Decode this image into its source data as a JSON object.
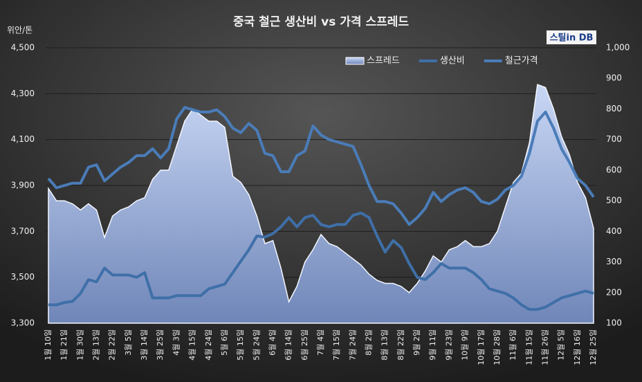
{
  "chart_data": {
    "type": "line",
    "title": "중국 철근 생산비 vs 가격 스프레드",
    "y_label": "위안/톤",
    "logo": "스틸in DB",
    "categories": [
      "1월 10일",
      null,
      "1월 21일",
      null,
      "1월 30일",
      null,
      "2월 13일",
      null,
      "2월 22일",
      null,
      "3월 5일",
      null,
      "3월 14일",
      null,
      "3월 25일",
      null,
      "4월 3일",
      null,
      "4월 15일",
      null,
      "4월 24일",
      null,
      "5월 6일",
      null,
      "5월 15일",
      null,
      "5월 24일",
      null,
      "6월 4일",
      null,
      "6월 14일",
      null,
      "6월 25일",
      null,
      "7월 4일",
      null,
      "7월 15일",
      null,
      "7월 24일",
      null,
      "8월 2일",
      null,
      "8월 13일",
      null,
      "8월 22일",
      null,
      "9월 2일",
      null,
      "9월 11일",
      null,
      "9월 23일",
      null,
      "10월 9일",
      null,
      "10월 17일",
      null,
      "10월 28일",
      null,
      "11월 6일",
      null,
      "11월 15일",
      null,
      "11월 26일",
      null,
      "12월 5일",
      null,
      "12월 16일",
      null,
      "12월 25일"
    ],
    "series": [
      {
        "name": "스프레드",
        "kind": "area",
        "axis": "y2",
        "color": "#b4c7ee",
        "values": [
          540,
          500,
          500,
          490,
          470,
          490,
          470,
          380,
          450,
          470,
          480,
          500,
          510,
          570,
          600,
          600,
          680,
          760,
          800,
          780,
          760,
          760,
          740,
          580,
          560,
          520,
          450,
          360,
          370,
          280,
          170,
          220,
          300,
          340,
          390,
          360,
          350,
          330,
          310,
          290,
          260,
          240,
          230,
          230,
          220,
          200,
          230,
          270,
          320,
          300,
          340,
          350,
          370,
          350,
          350,
          360,
          400,
          480,
          560,
          590,
          690,
          880,
          870,
          800,
          710,
          650,
          560,
          510,
          410
        ]
      },
      {
        "name": "생산비",
        "kind": "line",
        "color": "#3f6fa8",
        "values": [
          3380,
          3380,
          3390,
          3395,
          3430,
          3490,
          3480,
          3540,
          3510,
          3510,
          3510,
          3500,
          3520,
          3410,
          3410,
          3410,
          3420,
          3420,
          3420,
          3420,
          3450,
          3460,
          3470,
          3520,
          3570,
          3620,
          3680,
          3675,
          3690,
          3720,
          3760,
          3720,
          3760,
          3770,
          3730,
          3720,
          3730,
          3730,
          3770,
          3780,
          3760,
          3680,
          3610,
          3660,
          3630,
          3560,
          3500,
          3490,
          3520,
          3560,
          3540,
          3540,
          3540,
          3520,
          3490,
          3450,
          3440,
          3430,
          3410,
          3380,
          3360,
          3360,
          3370,
          3390,
          3410,
          3420,
          3430,
          3440,
          3430
        ]
      },
      {
        "name": "철근가격",
        "kind": "line",
        "color": "#4a7cb8",
        "values": [
          3930,
          3890,
          3900,
          3910,
          3910,
          3980,
          3990,
          3920,
          3950,
          3980,
          4000,
          4030,
          4030,
          4060,
          4020,
          4060,
          4190,
          4240,
          4230,
          4220,
          4220,
          4230,
          4200,
          4150,
          4130,
          4170,
          4140,
          4040,
          4030,
          3960,
          3960,
          4030,
          4050,
          4160,
          4120,
          4100,
          4090,
          4080,
          4070,
          3990,
          3900,
          3830,
          3830,
          3820,
          3780,
          3730,
          3760,
          3800,
          3870,
          3830,
          3860,
          3880,
          3890,
          3870,
          3830,
          3820,
          3840,
          3880,
          3900,
          3940,
          4040,
          4180,
          4220,
          4150,
          4060,
          4000,
          3930,
          3900,
          3850
        ]
      }
    ],
    "ylim": [
      3300,
      4500
    ],
    "yticks": [
      {
        "value": 3300,
        "label": "3,300"
      },
      {
        "value": 3500,
        "label": "3,500"
      },
      {
        "value": 3700,
        "label": "3,700"
      },
      {
        "value": 3900,
        "label": "3,900"
      },
      {
        "value": 4100,
        "label": "4,100"
      },
      {
        "value": 4300,
        "label": "4,300"
      },
      {
        "value": 4500,
        "label": "4,500"
      }
    ],
    "y2lim": [
      100,
      1000
    ],
    "y2ticks": [
      100,
      200,
      300,
      400,
      500,
      600,
      700,
      800,
      900,
      {
        "value": 1000,
        "label": "1,000"
      }
    ],
    "grid": true,
    "legend": "top-right"
  }
}
